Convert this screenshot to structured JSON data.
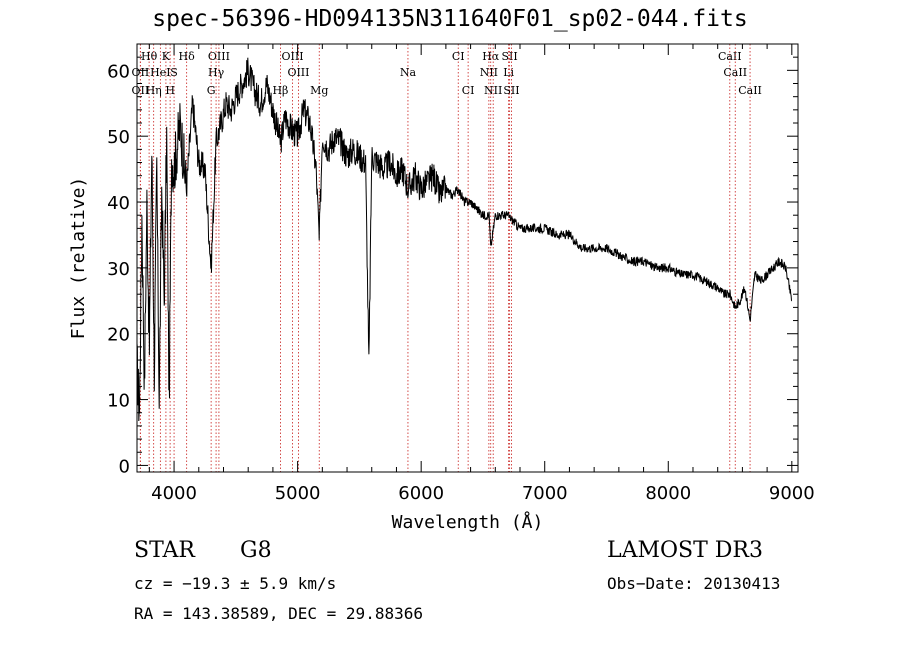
{
  "chart_data": {
    "type": "line",
    "title": "spec-56396-HD094135N311640F01_sp02-044.fits",
    "xlabel": "Wavelength (Å)",
    "ylabel": "Flux (relative)",
    "xlim": [
      3700,
      9050
    ],
    "ylim": [
      -1,
      64
    ],
    "xticks": [
      4000,
      5000,
      6000,
      7000,
      8000,
      9000
    ],
    "yticks": [
      0,
      10,
      20,
      30,
      40,
      50,
      60
    ],
    "series": [
      {
        "name": "flux",
        "x": [
          3700,
          3720,
          3740,
          3760,
          3780,
          3800,
          3820,
          3840,
          3860,
          3880,
          3900,
          3920,
          3940,
          3960,
          3980,
          4000,
          4050,
          4100,
          4150,
          4200,
          4250,
          4300,
          4340,
          4380,
          4420,
          4460,
          4500,
          4550,
          4600,
          4650,
          4700,
          4750,
          4800,
          4862,
          4900,
          4950,
          5000,
          5050,
          5100,
          5150,
          5175,
          5200,
          5250,
          5300,
          5350,
          5400,
          5450,
          5500,
          5550,
          5577,
          5600,
          5650,
          5700,
          5750,
          5800,
          5850,
          5895,
          5950,
          6000,
          6050,
          6100,
          6150,
          6200,
          6250,
          6300,
          6350,
          6400,
          6450,
          6500,
          6550,
          6563,
          6600,
          6650,
          6700,
          6750,
          6800,
          6900,
          7000,
          7100,
          7200,
          7300,
          7400,
          7500,
          7600,
          7700,
          7800,
          7900,
          8000,
          8100,
          8200,
          8300,
          8400,
          8450,
          8500,
          8542,
          8580,
          8620,
          8662,
          8700,
          8750,
          8800,
          8850,
          8900,
          8950,
          9000
        ],
        "y": [
          15,
          8,
          38,
          12,
          40,
          18,
          48,
          15,
          45,
          10,
          42,
          25,
          50,
          9,
          47,
          45,
          52,
          42,
          55,
          46,
          45,
          30,
          49,
          52,
          55,
          54,
          56,
          58,
          60,
          57,
          55,
          58,
          54,
          49,
          53,
          51,
          50,
          54,
          52,
          45,
          34,
          50,
          48,
          50,
          49,
          47,
          48,
          47,
          46,
          15,
          47,
          46,
          45,
          46,
          44,
          45,
          42,
          44,
          42,
          43,
          44,
          41,
          42,
          41,
          42,
          40,
          40,
          39,
          38,
          38,
          33,
          38,
          38,
          38,
          37,
          36,
          36,
          36,
          35,
          35,
          33,
          33,
          33,
          32,
          31,
          31,
          30,
          30,
          29,
          29,
          28,
          27,
          26,
          26,
          24,
          25,
          27,
          22,
          29,
          28,
          29,
          30,
          31,
          30,
          25
        ]
      }
    ],
    "lines": [
      {
        "label": "Hθ",
        "w": 3798,
        "row": 0
      },
      {
        "label": "K",
        "w": 3934,
        "row": 0
      },
      {
        "label": "Hδ",
        "w": 4102,
        "row": 0
      },
      {
        "label": "OIII",
        "w": 4363,
        "row": 0
      },
      {
        "label": "OIII",
        "w": 4959,
        "row": 0
      },
      {
        "label": "CI",
        "w": 6300,
        "row": 0
      },
      {
        "label": "Hα",
        "w": 6563,
        "row": 0
      },
      {
        "label": "SII",
        "w": 6716,
        "row": 0
      },
      {
        "label": "CaII",
        "w": 8498,
        "row": 0
      },
      {
        "label": "OII",
        "w": 3727,
        "row": 1
      },
      {
        "label": "HeI",
        "w": 3889,
        "row": 1
      },
      {
        "label": "S",
        "w": 4000,
        "row": 1
      },
      {
        "label": "Hγ",
        "w": 4340,
        "row": 1
      },
      {
        "label": "OIII",
        "w": 5007,
        "row": 1
      },
      {
        "label": "Na",
        "w": 5893,
        "row": 1
      },
      {
        "label": "NII",
        "w": 6548,
        "row": 1
      },
      {
        "label": "Li",
        "w": 6708,
        "row": 1
      },
      {
        "label": "CaII",
        "w": 8542,
        "row": 1
      },
      {
        "label": "OII",
        "w": 3727,
        "row": 2
      },
      {
        "label": "Hη",
        "w": 3835,
        "row": 2
      },
      {
        "label": "H",
        "w": 3968,
        "row": 2
      },
      {
        "label": "G",
        "w": 4300,
        "row": 2
      },
      {
        "label": "Hβ",
        "w": 4861,
        "row": 2
      },
      {
        "label": "Mg",
        "w": 5175,
        "row": 2
      },
      {
        "label": "CI",
        "w": 6380,
        "row": 2
      },
      {
        "label": "NII",
        "w": 6583,
        "row": 2
      },
      {
        "label": "SII",
        "w": 6731,
        "row": 2
      },
      {
        "label": "CaII",
        "w": 8662,
        "row": 2
      }
    ]
  },
  "info": {
    "class": "STAR",
    "subclass": "G8",
    "survey": "LAMOST DR3",
    "cz": "cz = −19.3 ± 5.9 km/s",
    "obsdate": "Obs−Date: 20130413",
    "radec": "RA = 143.38589, DEC =  29.88366"
  }
}
